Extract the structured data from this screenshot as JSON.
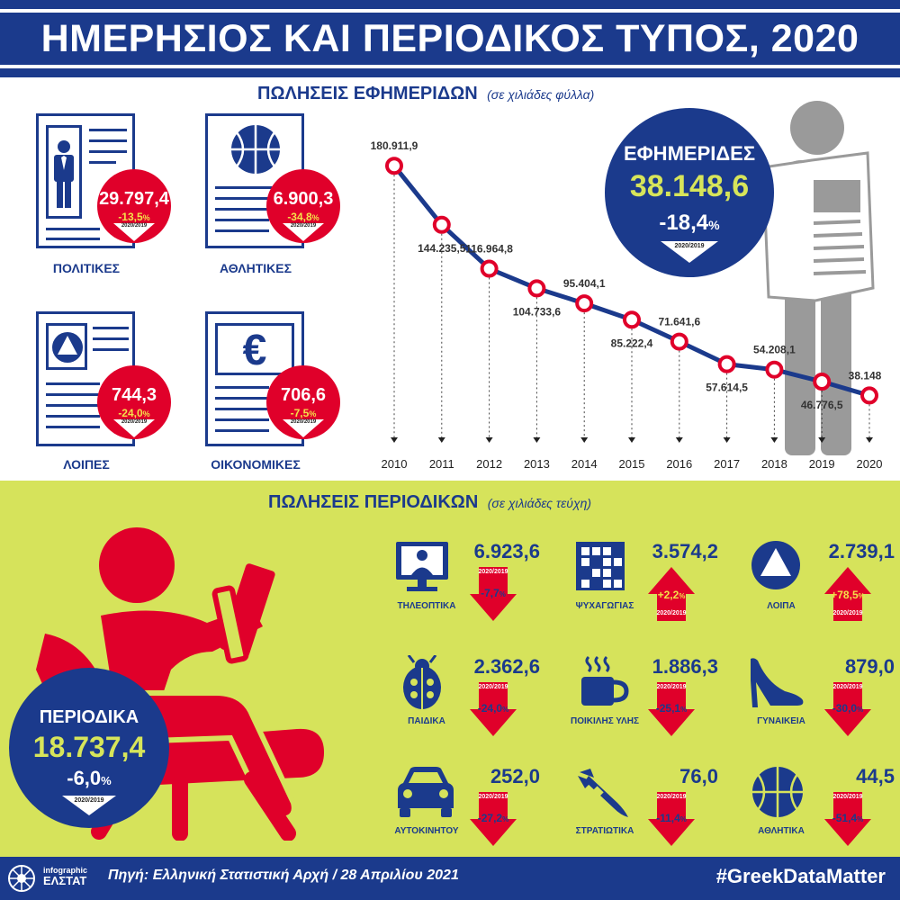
{
  "header": {
    "title": "ΗΜΕΡΗΣΙΟΣ ΚΑΙ ΠΕΡΙΟΔΙΚΟΣ ΤΥΠΟΣ, 2020"
  },
  "newspapers_section": {
    "title": "ΠΩΛΗΣΕΙΣ ΕΦΗΜΕΡΙΔΩΝ",
    "unit": "(σε χιλιάδες φύλλα)",
    "year_tag": "2020/2019",
    "categories": [
      {
        "label": "ΠΟΛΙΤΙΚΕΣ",
        "value": "29.797,4",
        "change": "-13,5",
        "pct_sign": "%",
        "icon": "person-icon"
      },
      {
        "label": "ΑΘΛΗΤΙΚΕΣ",
        "value": "6.900,3",
        "change": "-34,8",
        "pct_sign": "%",
        "icon": "basketball-icon"
      },
      {
        "label": "ΛΟΙΠΕΣ",
        "value": "744,3",
        "change": "-24,0",
        "pct_sign": "%",
        "icon": "triangle-icon"
      },
      {
        "label": "ΟΙΚΟΝΟΜΙΚΕΣ",
        "value": "706,6",
        "change": "-7,5",
        "pct_sign": "%",
        "icon": "euro-icon"
      }
    ],
    "total": {
      "title": "ΕΦΗΜΕΡΙΔΕΣ",
      "value": "38.148,6",
      "change": "-18,4",
      "pct_sign": "%",
      "year_tag": "2020/2019"
    }
  },
  "chart_data": {
    "type": "line",
    "x": [
      "2010",
      "2011",
      "2012",
      "2013",
      "2014",
      "2015",
      "2016",
      "2017",
      "2018",
      "2019",
      "2020"
    ],
    "values": [
      180911.9,
      144235.5,
      116964.8,
      104733.6,
      95404.1,
      85222.4,
      71641.6,
      57614.5,
      54208.1,
      46776.5,
      38148.6
    ],
    "labels": [
      "180.911,9",
      "144.235,5",
      "116.964,8",
      "104.733,6",
      "95.404,1",
      "85.222,4",
      "71.641,6",
      "57.614,5",
      "54.208,1",
      "46.776,5",
      "38.148,6"
    ],
    "ylim": [
      30000,
      190000
    ],
    "grid": false,
    "line_color": "#1b3a8c",
    "marker_color": "#e0002a"
  },
  "magazines_section": {
    "title": "ΠΩΛΗΣΕΙΣ ΠΕΡΙΟΔΙΚΩΝ",
    "unit": "(σε χιλιάδες τεύχη)",
    "year_tag": "2020/2019",
    "total": {
      "title": "ΠΕΡΙΟΔΙΚΑ",
      "value": "18.737,4",
      "change": "-6,0",
      "pct_sign": "%",
      "year_tag": "2020/2019"
    },
    "items": [
      {
        "label": "ΤΗΛΕΟΠΤΙΚΑ",
        "value": "6.923,6",
        "change": "-7,7",
        "pct_sign": "%",
        "direction": "down",
        "icon": "tv-icon"
      },
      {
        "label": "ΨΥΧΑΓΩΓΙΑΣ",
        "value": "3.574,2",
        "change": "+2,2",
        "pct_sign": "%",
        "direction": "up",
        "icon": "crossword-icon"
      },
      {
        "label": "ΛΟΙΠΑ",
        "value": "2.739,1",
        "change": "+78,5",
        "pct_sign": "%",
        "direction": "up",
        "icon": "triangle-icon"
      },
      {
        "label": "ΠΑΙΔΙΚΑ",
        "value": "2.362,6",
        "change": "-24,0",
        "pct_sign": "%",
        "direction": "down",
        "icon": "ladybug-icon"
      },
      {
        "label": "ΠΟΙΚΙΛΗΣ ΥΛΗΣ",
        "value": "1.886,3",
        "change": "-25,1",
        "pct_sign": "%",
        "direction": "down",
        "icon": "coffee-cup-icon"
      },
      {
        "label": "ΓΥΝΑΙΚΕΙΑ",
        "value": "879,0",
        "change": "-30,0",
        "pct_sign": "%",
        "direction": "down",
        "icon": "high-heel-icon"
      },
      {
        "label": "ΑΥΤΟΚΙΝΗΤΟΥ",
        "value": "252,0",
        "change": "-27,2",
        "pct_sign": "%",
        "direction": "down",
        "icon": "car-icon"
      },
      {
        "label": "ΣΤΡΑΤΙΩΤΙΚΑ",
        "value": "76,0",
        "change": "-11,4",
        "pct_sign": "%",
        "direction": "down",
        "icon": "missile-icon"
      },
      {
        "label": "ΑΘΛΗΤΙΚΑ",
        "value": "44,5",
        "change": "-51,4",
        "pct_sign": "%",
        "direction": "down",
        "icon": "basketball-icon"
      }
    ]
  },
  "footer": {
    "logo_line1": "infographic",
    "logo_line2": "ΕΛΣΤΑΤ",
    "source": "Πηγή: Ελληνική Στατιστική Αρχή  / 28 Απριλίου 2021",
    "hashtag": "#GreekDataMatter"
  },
  "colors": {
    "navy": "#1b3a8c",
    "red": "#e0002a",
    "lime": "#d6e35b",
    "yellow": "#d7e55a",
    "gray": "#9a9a9a"
  }
}
